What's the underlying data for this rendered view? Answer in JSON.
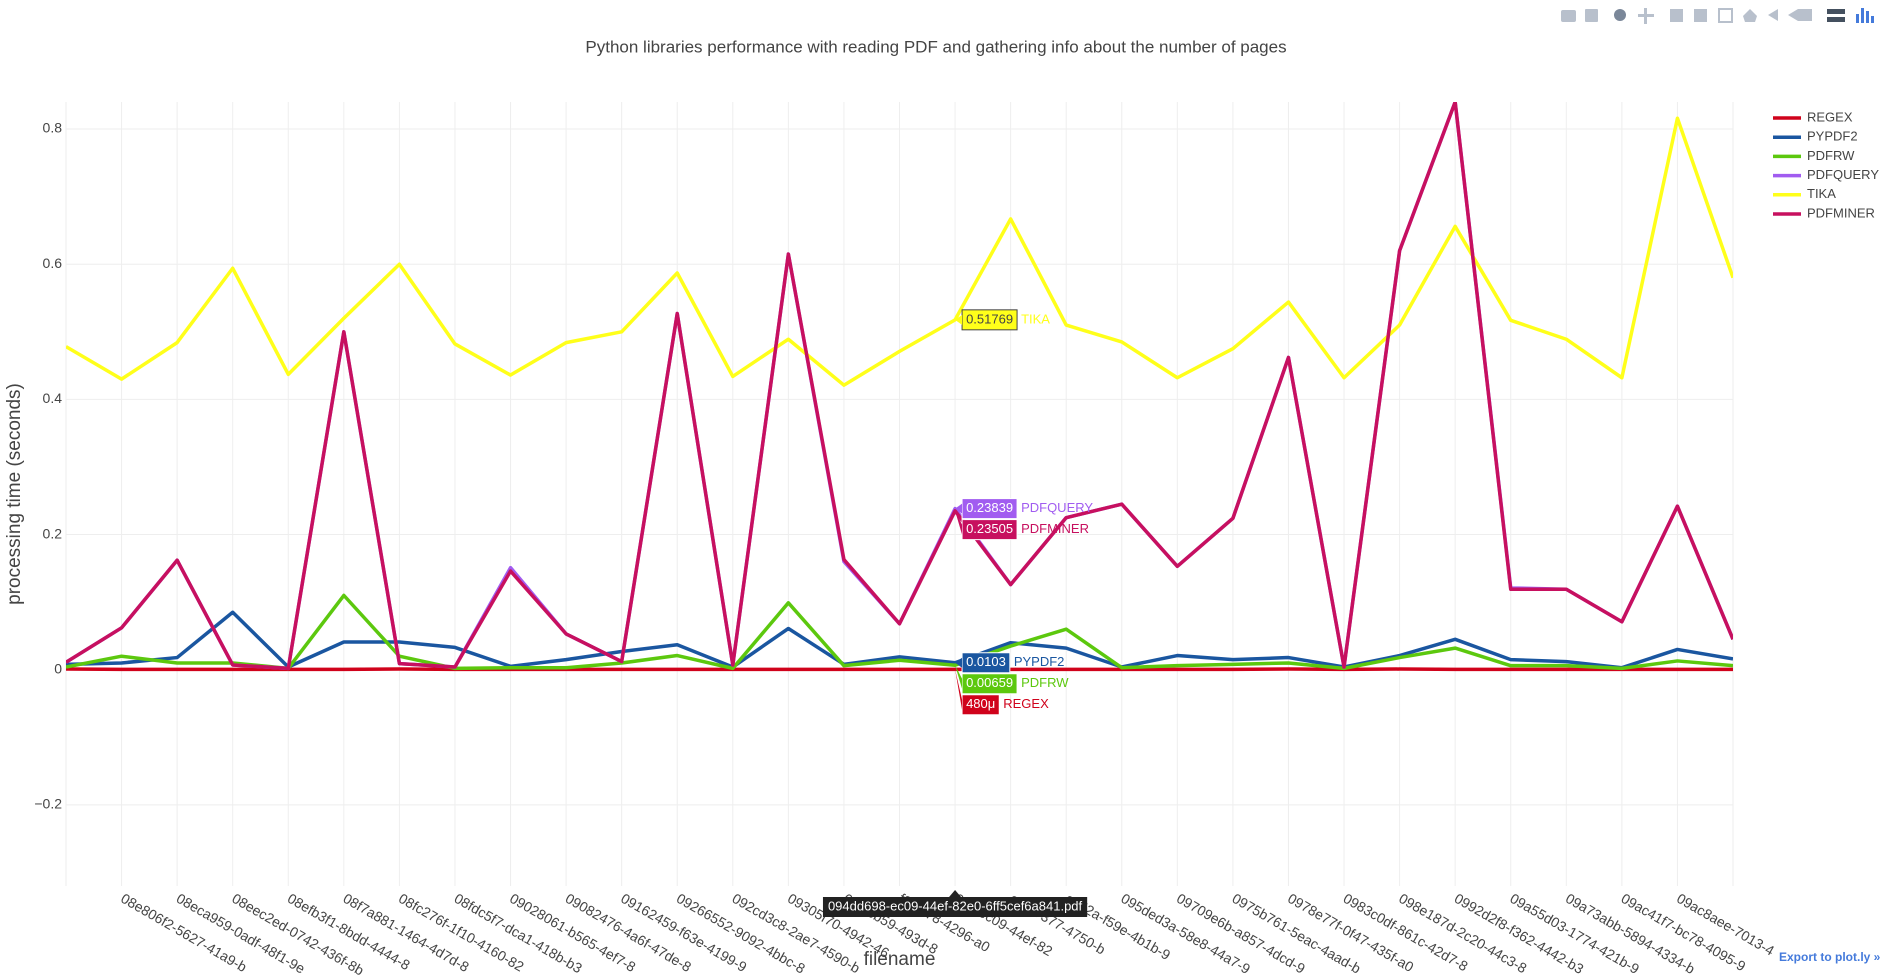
{
  "chart_data": {
    "type": "line",
    "title": "Python libraries performance with reading PDF and gathering info about the number of pages",
    "y_label": "processing time (seconds)",
    "x_label": "filename",
    "categories": [
      null,
      "08e806f2-5627-41a9-b",
      "08eca959-0adf-48f1-9e",
      "08eec2ed-0742-436f-8b",
      "08efb3f1-8bdd-4444-8",
      "08f7a881-1464-4d7d-8",
      "08fc276f-1f10-4160-82",
      "08fdc5f7-dca1-418b-b3",
      "09028061-b565-4ef7-8",
      "09082476-4a6f-47de-8",
      "09162459-f63e-4199-9",
      "09266552-9092-4bbc-8",
      "092cd3c8-2ae7-4590-b",
      "09305f70-4942-46",
      "610-cb59-493d-8",
      "f2-1178-4296-a0",
      "698-ec09-44ef-82",
      "a7b-7377-4750-b",
      "cd52a-f59e-4b1b-9",
      "095ded3a-58e8-44a7-9",
      "09709e6b-a857-4dcd-9",
      "0975b761-5eac-4aad-b",
      "0978e77f-0f47-435f-a0",
      "0983c0df-861c-42d7-8",
      "098e187d-2c20-44c3-8",
      "0992d2f8-f362-4442-b3",
      "09a55d03-1774-421b-9",
      "09a73abb-5894-4334-b",
      "09ac41f7-bc78-4095-9",
      "09ac8aee-7013-4",
      null
    ],
    "hover_category": "094dd698-ec09-44ef-82e0-6ff5cef6a841.pdf",
    "series": [
      {
        "name": "REGEX",
        "color": "#d0021b",
        "values": [
          0.001,
          0.0005,
          0.0005,
          0.0005,
          0.0005,
          0.0005,
          0.001,
          0.0005,
          0.0005,
          0.0005,
          0.0005,
          0.0005,
          0.0005,
          0.0005,
          0.0005,
          0.0005,
          0.00048,
          0.0005,
          0.0005,
          0.0005,
          0.0005,
          0.0005,
          0.001,
          0.0005,
          0.001,
          0.0005,
          0.0005,
          0.0005,
          0.0005,
          0.0005,
          0.0005
        ],
        "value_labels": [
          null,
          null,
          null,
          null,
          null,
          null,
          null,
          null,
          null,
          null,
          null,
          null,
          null,
          null,
          null,
          null,
          "480μ",
          null,
          null,
          null,
          null,
          null,
          null,
          null,
          null,
          null,
          null,
          null,
          null,
          null,
          null
        ]
      },
      {
        "name": "PYPDF2",
        "color": "#1a56a0",
        "values": [
          0.008,
          0.01,
          0.018,
          0.085,
          0.004,
          0.041,
          0.041,
          0.033,
          0.005,
          0.015,
          0.027,
          0.037,
          0.004,
          0.061,
          0.008,
          0.019,
          0.0103,
          0.04,
          0.032,
          0.004,
          0.021,
          0.015,
          0.018,
          0.004,
          0.021,
          0.045,
          0.015,
          0.012,
          0.003,
          0.03,
          0.016
        ]
      },
      {
        "name": "PDFRW",
        "color": "#5cc80e",
        "values": [
          0.004,
          0.02,
          0.01,
          0.01,
          0.002,
          0.11,
          0.02,
          0.002,
          0.003,
          0.003,
          0.01,
          0.021,
          0.002,
          0.099,
          0.006,
          0.014,
          0.00659,
          0.035,
          0.06,
          0.003,
          0.006,
          0.008,
          0.01,
          0.002,
          0.018,
          0.032,
          0.006,
          0.006,
          0.002,
          0.013,
          0.006
        ]
      },
      {
        "name": "PDFQUERY",
        "color": "#a15cf0",
        "values": [
          0.011,
          0.062,
          0.162,
          0.007,
          0.002,
          0.5,
          0.009,
          0.004,
          0.151,
          0.053,
          0.012,
          0.527,
          0.007,
          0.615,
          0.16,
          0.068,
          0.23839,
          0.126,
          0.225,
          0.245,
          0.153,
          0.224,
          0.462,
          0.004,
          0.62,
          0.84,
          0.121,
          0.119,
          0.071,
          0.242,
          0.045
        ]
      },
      {
        "name": "TIKA",
        "color": "#ffff1a",
        "values": [
          0.478,
          0.43,
          0.484,
          0.594,
          0.437,
          0.52,
          0.6,
          0.482,
          0.436,
          0.484,
          0.5,
          0.587,
          0.434,
          0.489,
          0.421,
          0.471,
          0.51769,
          0.667,
          0.51,
          0.485,
          0.432,
          0.475,
          0.544,
          0.432,
          0.51,
          0.656,
          0.517,
          0.489,
          0.432,
          0.816,
          0.58
        ]
      },
      {
        "name": "PDFMINER",
        "color": "#c7105f",
        "values": [
          0.011,
          0.062,
          0.162,
          0.007,
          0.002,
          0.5,
          0.009,
          0.004,
          0.146,
          0.053,
          0.012,
          0.527,
          0.007,
          0.615,
          0.163,
          0.068,
          0.23505,
          0.126,
          0.225,
          0.245,
          0.153,
          0.224,
          0.462,
          0.004,
          0.62,
          0.84,
          0.119,
          0.119,
          0.071,
          0.242,
          0.045
        ]
      }
    ],
    "ylim": [
      -0.32,
      0.84
    ],
    "yticks": [
      {
        "value": -0.2,
        "label": "−0.2"
      },
      0,
      0.2,
      0.4,
      0.6,
      0.8
    ],
    "grid": true,
    "legend": "top-right",
    "export_link": "Export to plot.ly »"
  }
}
